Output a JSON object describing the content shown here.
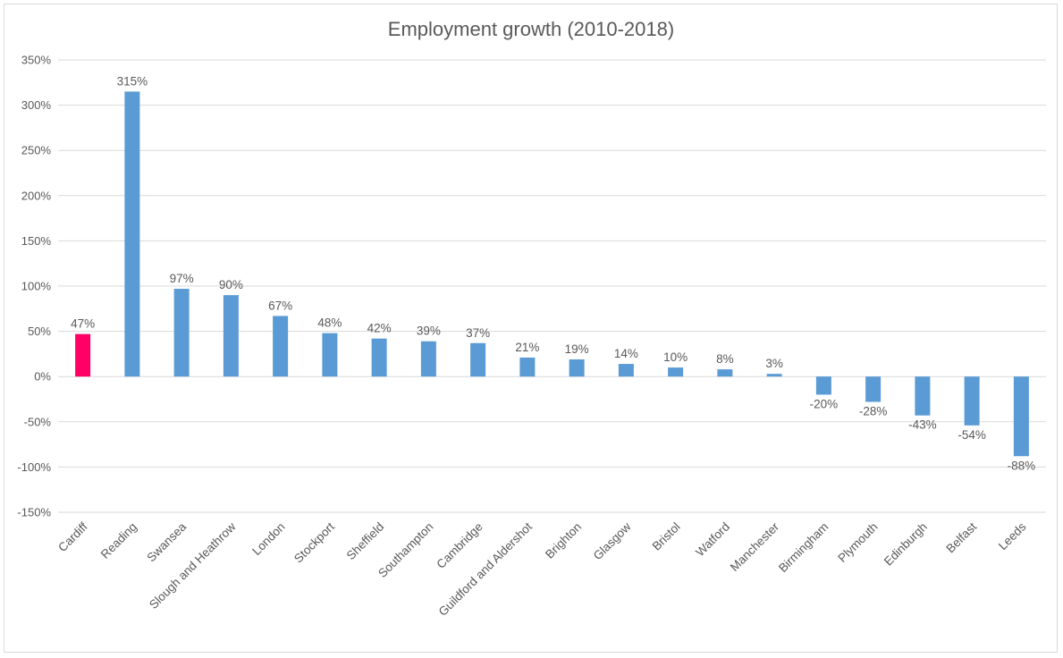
{
  "chart_data": {
    "type": "bar",
    "title": "Employment growth (2010-2018)",
    "xlabel": "",
    "ylabel": "",
    "ylim": [
      -150,
      350
    ],
    "ytick_step": 50,
    "ytick_suffix": "%",
    "grid": true,
    "legend": "none",
    "categories": [
      "Cardiff",
      "Reading",
      "Swansea",
      "Slough and Heathrow",
      "London",
      "Stockport",
      "Sheffield",
      "Southampton",
      "Cambridge",
      "Guildford and Aldershot",
      "Brighton",
      "Glasgow",
      "Bristol",
      "Watford",
      "Manchester",
      "Birmingham",
      "Plymouth",
      "Edinburgh",
      "Belfast",
      "Leeds"
    ],
    "values": [
      47,
      315,
      97,
      90,
      67,
      48,
      42,
      39,
      37,
      21,
      19,
      14,
      10,
      8,
      3,
      -20,
      -28,
      -43,
      -54,
      -88
    ],
    "data_labels": [
      "47%",
      "315%",
      "97%",
      "90%",
      "67%",
      "48%",
      "42%",
      "39%",
      "37%",
      "21%",
      "19%",
      "14%",
      "10%",
      "8%",
      "3%",
      "-20%",
      "-28%",
      "-43%",
      "-54%",
      "-88%"
    ],
    "highlight_index": 0,
    "colors": {
      "default": "#5b9bd5",
      "highlight": "#ff0066",
      "grid": "#d9d9d9",
      "text": "#595959"
    }
  }
}
